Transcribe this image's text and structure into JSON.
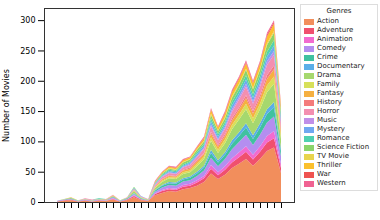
{
  "chart_data": {
    "type": "area",
    "stacked": true,
    "y_label": "Number of Movies",
    "legend_title": "Genres",
    "legend": "right",
    "grid": false,
    "tick_labels": "y",
    "ylim": [
      0,
      320
    ],
    "yticks": [
      0,
      50,
      100,
      150,
      200,
      250,
      300
    ],
    "categories": [
      null,
      null,
      null,
      null,
      null,
      null,
      null,
      null,
      null,
      null,
      null,
      null,
      null,
      null,
      null,
      null,
      null,
      null,
      null,
      null,
      null,
      null,
      null,
      null,
      null,
      null,
      null,
      null,
      null,
      null,
      null,
      null,
      null
    ],
    "series": [
      {
        "name": "Action",
        "color": "#f28e5c",
        "values": [
          1,
          2,
          3,
          1,
          2,
          1,
          2,
          2,
          4,
          1,
          3,
          8,
          3,
          2,
          11,
          15,
          18,
          17,
          21,
          23,
          27,
          33,
          47,
          38,
          45,
          56,
          63,
          71,
          60,
          71,
          84,
          90,
          48
        ]
      },
      {
        "name": "Adventure",
        "color": "#f0506e",
        "values": [
          0,
          1,
          1,
          0,
          1,
          0,
          1,
          0,
          1,
          0,
          1,
          2,
          1,
          0,
          2,
          3,
          3,
          3,
          4,
          4,
          5,
          6,
          8,
          6,
          8,
          9,
          11,
          12,
          10,
          12,
          14,
          15,
          8
        ]
      },
      {
        "name": "Animation",
        "color": "#f26bd0",
        "values": [
          0,
          0,
          0,
          0,
          0,
          0,
          0,
          0,
          1,
          0,
          0,
          1,
          0,
          0,
          1,
          2,
          2,
          2,
          3,
          3,
          4,
          4,
          6,
          5,
          6,
          7,
          8,
          9,
          8,
          9,
          11,
          12,
          6
        ]
      },
      {
        "name": "Comedy",
        "color": "#b48ef0",
        "values": [
          1,
          1,
          1,
          1,
          1,
          1,
          1,
          1,
          2,
          1,
          1,
          2,
          1,
          1,
          3,
          4,
          5,
          5,
          6,
          6,
          7,
          9,
          12,
          10,
          12,
          15,
          17,
          19,
          16,
          19,
          22,
          24,
          13
        ]
      },
      {
        "name": "Crime",
        "color": "#3fc1a0",
        "values": [
          0,
          0,
          1,
          0,
          0,
          0,
          0,
          0,
          1,
          0,
          1,
          1,
          1,
          0,
          2,
          3,
          3,
          3,
          3,
          4,
          4,
          5,
          8,
          6,
          7,
          9,
          10,
          12,
          10,
          12,
          14,
          15,
          8
        ]
      },
      {
        "name": "Documentary",
        "color": "#5aaee8",
        "values": [
          0,
          0,
          0,
          0,
          0,
          0,
          0,
          0,
          0,
          0,
          0,
          1,
          0,
          0,
          1,
          1,
          2,
          2,
          2,
          2,
          3,
          3,
          5,
          4,
          4,
          6,
          6,
          7,
          6,
          7,
          8,
          9,
          5
        ]
      },
      {
        "name": "Drama",
        "color": "#a6d86e",
        "values": [
          0,
          1,
          1,
          1,
          1,
          1,
          1,
          1,
          1,
          1,
          1,
          3,
          1,
          1,
          3,
          5,
          6,
          6,
          7,
          7,
          9,
          11,
          15,
          12,
          15,
          18,
          21,
          23,
          20,
          23,
          28,
          30,
          16
        ]
      },
      {
        "name": "Family",
        "color": "#d7e05a",
        "values": [
          0,
          0,
          0,
          0,
          0,
          0,
          0,
          0,
          0,
          0,
          0,
          1,
          1,
          0,
          1,
          2,
          2,
          2,
          3,
          3,
          4,
          4,
          6,
          5,
          6,
          7,
          8,
          9,
          8,
          9,
          11,
          12,
          6
        ]
      },
      {
        "name": "Fantasy",
        "color": "#f5b041",
        "values": [
          0,
          0,
          1,
          0,
          0,
          0,
          0,
          0,
          1,
          0,
          0,
          1,
          0,
          0,
          1,
          2,
          2,
          2,
          3,
          3,
          4,
          4,
          6,
          5,
          6,
          7,
          8,
          9,
          8,
          9,
          11,
          12,
          6
        ]
      },
      {
        "name": "History",
        "color": "#f47c7c",
        "values": [
          0,
          0,
          0,
          0,
          0,
          0,
          0,
          0,
          0,
          0,
          0,
          0,
          0,
          0,
          1,
          1,
          1,
          1,
          1,
          2,
          2,
          2,
          3,
          3,
          3,
          4,
          4,
          5,
          4,
          5,
          6,
          6,
          3
        ]
      },
      {
        "name": "Horror",
        "color": "#f38fb0",
        "values": [
          0,
          0,
          0,
          0,
          1,
          1,
          0,
          1,
          1,
          0,
          1,
          2,
          1,
          1,
          2,
          3,
          4,
          3,
          4,
          4,
          5,
          7,
          9,
          8,
          9,
          11,
          13,
          14,
          12,
          14,
          17,
          18,
          10
        ]
      },
      {
        "name": "Music",
        "color": "#c08fe8",
        "values": [
          0,
          0,
          0,
          0,
          0,
          0,
          0,
          0,
          0,
          0,
          0,
          0,
          0,
          0,
          1,
          1,
          1,
          1,
          1,
          2,
          2,
          2,
          3,
          2,
          3,
          4,
          4,
          5,
          4,
          5,
          6,
          6,
          3
        ]
      },
      {
        "name": "Mystery",
        "color": "#6fa8f0",
        "values": [
          0,
          0,
          0,
          0,
          0,
          0,
          0,
          0,
          0,
          0,
          0,
          1,
          1,
          0,
          1,
          1,
          2,
          2,
          2,
          2,
          3,
          3,
          5,
          4,
          4,
          6,
          6,
          7,
          6,
          7,
          8,
          9,
          5
        ]
      },
      {
        "name": "Romance",
        "color": "#4fd1b0",
        "values": [
          0,
          0,
          0,
          0,
          0,
          0,
          1,
          0,
          0,
          0,
          0,
          1,
          0,
          0,
          1,
          2,
          2,
          2,
          2,
          2,
          3,
          3,
          5,
          4,
          4,
          6,
          6,
          7,
          6,
          7,
          8,
          9,
          5
        ]
      },
      {
        "name": "Science Fiction",
        "color": "#8bd46a",
        "values": [
          0,
          0,
          0,
          0,
          0,
          0,
          0,
          0,
          0,
          0,
          0,
          1,
          0,
          0,
          1,
          2,
          2,
          2,
          3,
          3,
          4,
          4,
          6,
          5,
          6,
          7,
          8,
          9,
          8,
          9,
          11,
          12,
          6
        ]
      },
      {
        "name": "TV Movie",
        "color": "#e8d44d",
        "values": [
          0,
          0,
          0,
          0,
          0,
          0,
          0,
          0,
          0,
          0,
          0,
          0,
          0,
          0,
          0,
          0,
          1,
          1,
          1,
          1,
          1,
          1,
          2,
          1,
          2,
          2,
          2,
          2,
          2,
          2,
          3,
          3,
          2
        ]
      },
      {
        "name": "Thriller",
        "color": "#fbc02d",
        "values": [
          0,
          0,
          0,
          0,
          0,
          0,
          0,
          0,
          0,
          0,
          0,
          0,
          0,
          0,
          1,
          2,
          2,
          2,
          3,
          3,
          3,
          4,
          6,
          5,
          6,
          7,
          8,
          9,
          8,
          9,
          11,
          12,
          6
        ]
      },
      {
        "name": "War",
        "color": "#ef5350",
        "values": [
          0,
          0,
          0,
          0,
          0,
          0,
          0,
          0,
          0,
          0,
          0,
          0,
          0,
          0,
          1,
          0,
          1,
          1,
          1,
          0,
          1,
          1,
          1,
          1,
          2,
          2,
          2,
          2,
          2,
          2,
          3,
          3,
          2
        ]
      },
      {
        "name": "Western",
        "color": "#f06292",
        "values": [
          0,
          0,
          0,
          0,
          0,
          0,
          0,
          0,
          0,
          0,
          0,
          0,
          0,
          0,
          1,
          1,
          1,
          1,
          1,
          1,
          1,
          2,
          2,
          1,
          2,
          2,
          2,
          3,
          2,
          2,
          3,
          3,
          2
        ]
      }
    ]
  }
}
